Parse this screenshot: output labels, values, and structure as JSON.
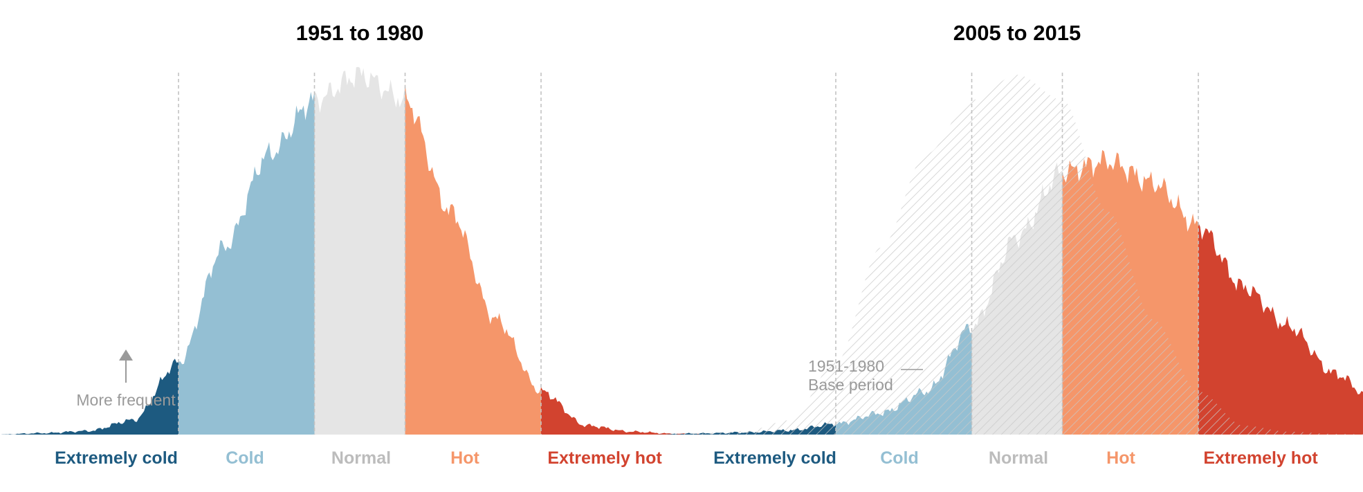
{
  "colors": {
    "extremely_cold": "#1d5a80",
    "cold": "#94bfd3",
    "normal": "#e5e5e5",
    "normal_label": "#bcbcbc",
    "hot": "#f5966a",
    "extremely_hot": "#d2432f",
    "hatch": "#c8c8c8",
    "annotation": "#9a9a9a"
  },
  "chart_data": [
    {
      "type": "area",
      "title": "1951 to 1980",
      "categories": [
        "Extremely cold",
        "Cold",
        "Normal",
        "Hot",
        "Extremely hot"
      ],
      "y_direction_note": "More frequent",
      "x": [
        -4.0,
        -3.5,
        -3.0,
        -2.5,
        -2.0,
        -1.5,
        -1.0,
        -0.5,
        0.0,
        0.5,
        1.0,
        1.5,
        2.0,
        2.5,
        3.0,
        3.5,
        4.0
      ],
      "series": [
        {
          "values": [
            0.0,
            0.004,
            0.01,
            0.04,
            0.2,
            0.52,
            0.78,
            0.93,
            1.0,
            0.93,
            0.62,
            0.32,
            0.12,
            0.025,
            0.008,
            0.002,
            0.0
          ]
        }
      ]
    },
    {
      "type": "area",
      "title": "2005 to 2015",
      "categories": [
        "Extremely cold",
        "Cold",
        "Normal",
        "Hot",
        "Extremely hot"
      ],
      "annotations": [
        {
          "line1": "1951-1980",
          "line2": "Base period"
        }
      ],
      "x": [
        -4.0,
        -3.5,
        -3.0,
        -2.5,
        -2.0,
        -1.5,
        -1.0,
        -0.5,
        0.0,
        0.5,
        1.0,
        1.5,
        2.0,
        2.5,
        3.0,
        3.5,
        4.0,
        4.5,
        5.0
      ],
      "series": [
        {
          "values": [
            0.0,
            0.003,
            0.006,
            0.012,
            0.03,
            0.06,
            0.12,
            0.3,
            0.55,
            0.73,
            0.76,
            0.7,
            0.58,
            0.41,
            0.3,
            0.17,
            0.08,
            0.03,
            0.0
          ]
        },
        {
          "values": [
            0.0,
            0.004,
            0.01,
            0.04,
            0.2,
            0.52,
            0.78,
            0.93,
            1.0,
            0.93,
            0.62,
            0.32,
            0.12,
            0.025,
            0.008,
            0.002,
            0.0,
            0.0,
            0.0
          ]
        }
      ]
    }
  ]
}
